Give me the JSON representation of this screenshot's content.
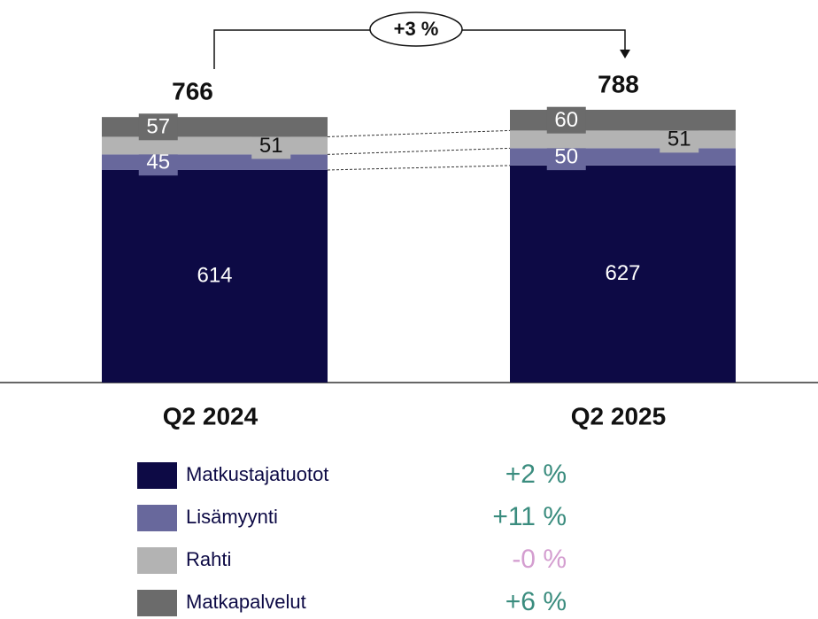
{
  "chart_data": {
    "type": "stacked_bar",
    "categories": [
      "Q2 2024",
      "Q2 2025"
    ],
    "totals": [
      766,
      788
    ],
    "change": "+3 %",
    "series": [
      {
        "name": "Matkustajatuotot",
        "color": "#0d0a45",
        "values": [
          614,
          627
        ],
        "change": "+2 %",
        "change_color": "#3a8c7e"
      },
      {
        "name": "Lisämyynti",
        "color": "#68689c",
        "values": [
          45,
          50
        ],
        "change": "+11 %",
        "change_color": "#3a8c7e"
      },
      {
        "name": "Rahti",
        "color": "#b3b3b3",
        "values": [
          51,
          51
        ],
        "change": "-0 %",
        "change_color": "#d49ed0"
      },
      {
        "name": "Matkapalvelut",
        "color": "#6b6b6b",
        "values": [
          57,
          60
        ],
        "change": "+6 %",
        "change_color": "#3a8c7e"
      }
    ],
    "ylim": [
      0,
      1100
    ]
  }
}
